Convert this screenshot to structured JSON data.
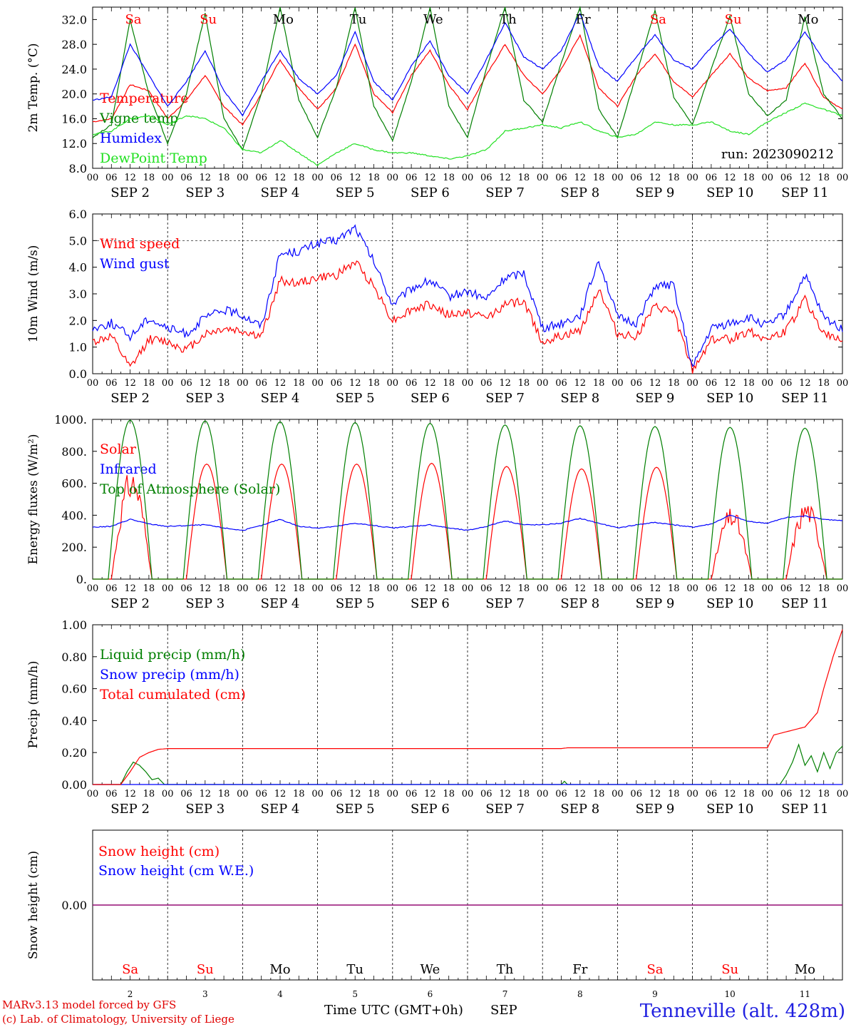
{
  "colors": {
    "red": "#ff0000",
    "green": "#007f00",
    "lightgreen": "#22e022",
    "blue": "#0000ff",
    "purple": "#7f007f",
    "weekend": "#ff0000",
    "weekday": "#000000"
  },
  "x_axis": {
    "hour_labels": [
      "00",
      "06",
      "12",
      "18"
    ],
    "final_hour_label": "00",
    "date_labels": [
      "SEP  2",
      "SEP  3",
      "SEP  4",
      "SEP  5",
      "SEP  6",
      "SEP  7",
      "SEP  8",
      "SEP  9",
      "SEP 10",
      "SEP 11"
    ],
    "weekdays": [
      "Sa",
      "Su",
      "Mo",
      "Tu",
      "We",
      "Th",
      "Fr",
      "Sa",
      "Su",
      "Mo"
    ],
    "weekend": [
      true,
      true,
      false,
      false,
      false,
      false,
      false,
      true,
      true,
      false
    ],
    "day_numbers": [
      "2",
      "3",
      "4",
      "5",
      "6",
      "7",
      "8",
      "9",
      "10",
      "11"
    ]
  },
  "footer": {
    "credit1": "MARv3.13 model forced by GFS",
    "credit2": "(c) Lab. of Climatology, University of Liege",
    "xlabel": "Time UTC (GMT+0h)",
    "month": "SEP",
    "station": "Tenneville (alt. 428m)"
  },
  "chart_data": [
    {
      "type": "line",
      "ylabel": "2m Temp. (°C)",
      "ylim": [
        8,
        34
      ],
      "ytick_values": [
        8,
        12,
        16,
        20,
        24,
        28,
        32
      ],
      "ytick_labels": [
        "8.0",
        "12.0",
        "16.0",
        "20.0",
        "24.0",
        "28.0",
        "32.0"
      ],
      "annotation": "run: 2023090212",
      "x_unit": "hours since SEP 2 00 UTC",
      "series": [
        {
          "name": "Temperature",
          "color": "red",
          "x": [
            0,
            6,
            12,
            18,
            24,
            30,
            36,
            42,
            48,
            54,
            60,
            66,
            72,
            78,
            84,
            90,
            96,
            102,
            108,
            114,
            120,
            126,
            132,
            138,
            144,
            150,
            156,
            162,
            168,
            174,
            180,
            186,
            192,
            198,
            204,
            210,
            216,
            222,
            228,
            234,
            240
          ],
          "y": [
            15.5,
            16.0,
            21.5,
            20.5,
            16.0,
            19.0,
            23.0,
            18.0,
            15.0,
            20.0,
            25.5,
            21.0,
            17.5,
            21.0,
            28.0,
            20.0,
            17.0,
            23.0,
            27.0,
            21.5,
            17.5,
            23.0,
            28.0,
            23.0,
            20.0,
            24.0,
            29.5,
            21.0,
            18.0,
            23.0,
            26.5,
            22.0,
            19.5,
            23.0,
            26.5,
            22.5,
            20.5,
            21.0,
            25.0,
            19.5,
            17.5
          ]
        },
        {
          "name": "Vigne temp",
          "color": "green",
          "x": [
            0,
            6,
            12,
            18,
            24,
            30,
            36,
            42,
            48,
            54,
            60,
            66,
            72,
            78,
            84,
            90,
            96,
            102,
            108,
            114,
            120,
            126,
            132,
            138,
            144,
            150,
            156,
            162,
            168,
            174,
            180,
            186,
            192,
            198,
            204,
            210,
            216,
            222,
            228,
            234,
            240
          ],
          "y": [
            13.0,
            15.0,
            32.0,
            20.0,
            12.0,
            20.0,
            33.0,
            16.0,
            11.0,
            20.0,
            34.0,
            19.0,
            13.0,
            21.0,
            34.0,
            18.0,
            12.5,
            22.0,
            34.0,
            18.0,
            13.0,
            24.0,
            34.0,
            19.0,
            15.5,
            25.0,
            34.0,
            17.5,
            13.0,
            23.0,
            33.5,
            19.5,
            15.0,
            24.0,
            32.5,
            20.0,
            16.5,
            19.0,
            32.5,
            20.0,
            16.0
          ]
        },
        {
          "name": "Humidex",
          "color": "blue",
          "x": [
            0,
            6,
            12,
            18,
            24,
            30,
            36,
            42,
            48,
            54,
            60,
            66,
            72,
            78,
            84,
            90,
            96,
            102,
            108,
            114,
            120,
            126,
            132,
            138,
            144,
            150,
            156,
            162,
            168,
            174,
            180,
            186,
            192,
            198,
            204,
            210,
            216,
            222,
            228,
            234,
            240
          ],
          "y": [
            19.0,
            19.5,
            28.0,
            23.0,
            18.0,
            22.0,
            27.0,
            20.5,
            16.5,
            22.0,
            27.0,
            22.5,
            20.0,
            23.0,
            30.0,
            22.0,
            19.0,
            24.5,
            28.5,
            23.0,
            20.0,
            25.5,
            31.5,
            26.0,
            24.0,
            27.0,
            33.0,
            24.5,
            22.0,
            26.0,
            29.5,
            25.5,
            24.0,
            27.5,
            30.5,
            26.5,
            23.5,
            25.5,
            30.0,
            25.5,
            22.0
          ]
        },
        {
          "name": "DewPoint Temp",
          "color": "lightgreen",
          "x": [
            0,
            6,
            12,
            18,
            24,
            30,
            36,
            42,
            48,
            54,
            60,
            66,
            72,
            78,
            84,
            90,
            96,
            102,
            108,
            114,
            120,
            126,
            132,
            138,
            144,
            150,
            156,
            162,
            168,
            174,
            180,
            186,
            192,
            198,
            204,
            210,
            216,
            222,
            228,
            234,
            240
          ],
          "y": [
            13.5,
            14.0,
            16.0,
            16.5,
            15.0,
            16.5,
            16.0,
            14.5,
            11.0,
            10.5,
            12.5,
            10.5,
            8.5,
            10.5,
            12.0,
            11.0,
            10.5,
            10.5,
            10.0,
            9.5,
            10.0,
            11.0,
            14.0,
            14.5,
            15.0,
            14.5,
            15.5,
            14.0,
            13.0,
            13.5,
            15.5,
            15.0,
            15.0,
            15.5,
            14.0,
            13.5,
            15.5,
            17.0,
            18.5,
            17.5,
            16.5
          ]
        }
      ]
    },
    {
      "type": "line",
      "ylabel": "10m Wind (m/s)",
      "ylim": [
        0,
        6
      ],
      "ytick_values": [
        0,
        1,
        2,
        3,
        4,
        5,
        6
      ],
      "ytick_labels": [
        "0.0",
        "1.0",
        "2.0",
        "3.0",
        "4.0",
        "5.0",
        "6.0"
      ],
      "reference_line": 5.0,
      "x_unit": "hours since SEP 2 00 UTC",
      "series": [
        {
          "name": "Wind speed",
          "color": "red",
          "x": [
            0,
            6,
            12,
            18,
            24,
            30,
            36,
            42,
            48,
            54,
            60,
            66,
            72,
            78,
            84,
            90,
            96,
            102,
            108,
            114,
            120,
            126,
            132,
            138,
            144,
            150,
            156,
            162,
            168,
            174,
            180,
            186,
            192,
            198,
            204,
            210,
            216,
            222,
            228,
            234,
            240
          ],
          "y": [
            1.2,
            1.4,
            0.2,
            1.3,
            1.2,
            0.9,
            1.5,
            1.7,
            1.6,
            1.4,
            3.5,
            3.4,
            3.6,
            3.7,
            4.2,
            3.3,
            2.0,
            2.4,
            2.6,
            2.2,
            2.3,
            2.1,
            2.6,
            2.7,
            1.2,
            1.4,
            1.6,
            3.2,
            1.5,
            1.4,
            2.5,
            2.3,
            0.1,
            1.3,
            1.3,
            1.6,
            1.3,
            1.6,
            2.8,
            1.5,
            1.2
          ]
        },
        {
          "name": "Wind gust",
          "color": "blue",
          "x": [
            0,
            6,
            12,
            18,
            24,
            30,
            36,
            42,
            48,
            54,
            60,
            66,
            72,
            78,
            84,
            90,
            96,
            102,
            108,
            114,
            120,
            126,
            132,
            138,
            144,
            150,
            156,
            162,
            168,
            174,
            180,
            186,
            192,
            198,
            204,
            210,
            216,
            222,
            228,
            234,
            240
          ],
          "y": [
            1.7,
            1.9,
            1.4,
            2.1,
            1.7,
            1.5,
            2.1,
            2.4,
            2.2,
            1.8,
            4.5,
            4.6,
            4.9,
            5.0,
            5.5,
            4.2,
            2.6,
            3.2,
            3.5,
            2.9,
            3.1,
            2.8,
            3.6,
            3.8,
            1.7,
            1.9,
            2.2,
            4.3,
            2.1,
            1.9,
            3.3,
            3.3,
            0.2,
            1.7,
            1.9,
            2.1,
            1.8,
            2.3,
            3.7,
            2.1,
            1.7
          ]
        }
      ]
    },
    {
      "type": "line",
      "ylabel": "Energy fluxes (W/m²)",
      "ylim": [
        0,
        1000
      ],
      "ytick_values": [
        0,
        200,
        400,
        600,
        800,
        1000
      ],
      "ytick_labels": [
        "0.",
        "200.",
        "400.",
        "600.",
        "800.",
        "1000."
      ],
      "x_unit": "hours since SEP 2 00 UTC",
      "series": [
        {
          "name": "Solar",
          "color": "red",
          "diurnal_peaks_at_13h": [
            700,
            720,
            720,
            720,
            725,
            705,
            690,
            700,
            450,
            500
          ],
          "sunrise_h": 6,
          "sunset_h": 19
        },
        {
          "name": "Infrared",
          "color": "blue",
          "x": [
            0,
            6,
            12,
            18,
            24,
            30,
            36,
            42,
            48,
            54,
            60,
            66,
            72,
            78,
            84,
            90,
            96,
            102,
            108,
            114,
            120,
            126,
            132,
            138,
            144,
            150,
            156,
            162,
            168,
            174,
            180,
            186,
            192,
            198,
            204,
            210,
            216,
            222,
            228,
            234,
            240
          ],
          "y": [
            325,
            330,
            375,
            345,
            330,
            335,
            340,
            320,
            305,
            335,
            375,
            330,
            320,
            330,
            350,
            335,
            320,
            330,
            340,
            320,
            305,
            330,
            365,
            340,
            340,
            350,
            380,
            350,
            320,
            340,
            355,
            340,
            325,
            345,
            400,
            360,
            350,
            385,
            395,
            375,
            365
          ]
        },
        {
          "name": "Top of Atmosphere (Solar)",
          "color": "green",
          "diurnal_peaks_at_12h": [
            995,
            990,
            985,
            980,
            975,
            965,
            960,
            955,
            950,
            945
          ],
          "sunrise_h": 5,
          "sunset_h": 19
        }
      ]
    },
    {
      "type": "line",
      "ylabel": "Precip (mm/h)",
      "ylim": [
        0,
        1
      ],
      "ytick_values": [
        0,
        0.2,
        0.4,
        0.6,
        0.8,
        1.0
      ],
      "ytick_labels": [
        "0.00",
        "0.20",
        "0.40",
        "0.60",
        "0.80",
        "1.00"
      ],
      "x_unit": "hours since SEP 2 00 UTC",
      "series": [
        {
          "name": "Liquid precip (mm/h)",
          "color": "green",
          "x": [
            0,
            9,
            11,
            13,
            15,
            17,
            19,
            21,
            23,
            150,
            151,
            152,
            220,
            222,
            224,
            226,
            228,
            230,
            232,
            234,
            236,
            238,
            240
          ],
          "y": [
            0,
            0,
            0.08,
            0.14,
            0.12,
            0.08,
            0.03,
            0.04,
            0,
            0,
            0.02,
            0,
            0.0,
            0.06,
            0.14,
            0.25,
            0.12,
            0.18,
            0.08,
            0.2,
            0.1,
            0.2,
            0.24
          ]
        },
        {
          "name": "Snow precip (mm/h)",
          "color": "blue",
          "x": [
            0,
            240
          ],
          "y": [
            0,
            0
          ]
        },
        {
          "name": "Total cumulated (cm)",
          "color": "red",
          "x": [
            0,
            9,
            12,
            15,
            18,
            21,
            24,
            150,
            152,
            216,
            218,
            222,
            228,
            232,
            234,
            237,
            240
          ],
          "y": [
            0,
            0,
            0.08,
            0.17,
            0.2,
            0.22,
            0.225,
            0.225,
            0.23,
            0.23,
            0.31,
            0.33,
            0.36,
            0.45,
            0.6,
            0.8,
            0.97
          ]
        }
      ]
    },
    {
      "type": "line",
      "ylabel": "Snow height (cm)",
      "ytick_values": [
        0
      ],
      "ytick_labels": [
        "0.00"
      ],
      "x_unit": "hours since SEP 2 00 UTC",
      "series": [
        {
          "name": "Snow height (cm)",
          "color": "red",
          "x": [
            0,
            240
          ],
          "y": [
            0,
            0
          ]
        },
        {
          "name": "Snow height (cm W.E.)",
          "color": "blue",
          "x": [
            0,
            240
          ],
          "y": [
            0,
            0
          ]
        }
      ]
    }
  ]
}
